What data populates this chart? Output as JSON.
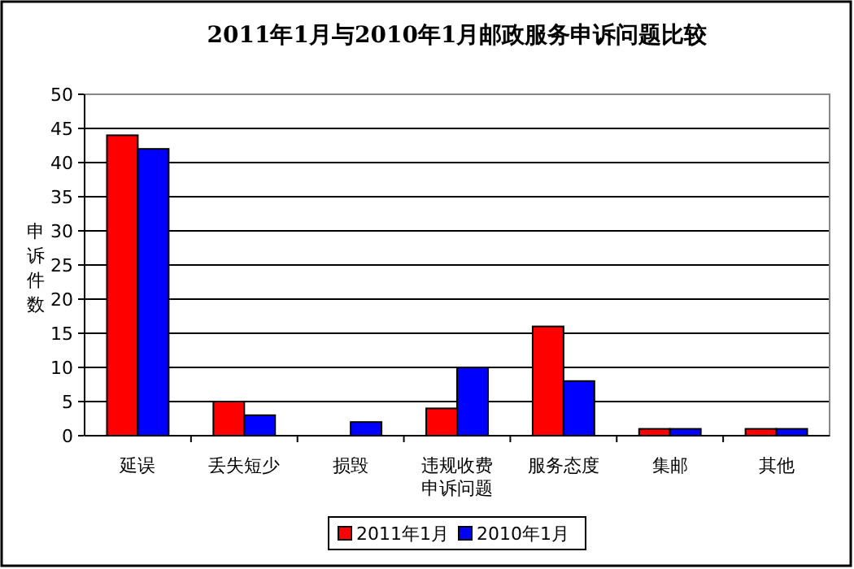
{
  "chart_data": {
    "type": "bar",
    "title": "2011年1月与2010年1月邮政服务申诉问题比较",
    "xlabel": "申诉问题",
    "ylabel": "申诉件数",
    "categories": [
      "延误",
      "丢失短少",
      "损毁",
      "违规收费",
      "服务态度",
      "集邮",
      "其他"
    ],
    "series": [
      {
        "name": "2011年1月",
        "color": "#ff0000",
        "values": [
          44,
          5,
          0,
          4,
          16,
          1,
          1
        ]
      },
      {
        "name": "2010年1月",
        "color": "#0000ff",
        "values": [
          42,
          3,
          2,
          10,
          8,
          1,
          1
        ]
      }
    ],
    "ylim": [
      0,
      50
    ],
    "yticks": [
      0,
      5,
      10,
      15,
      20,
      25,
      30,
      35,
      40,
      45,
      50
    ],
    "grid": "y",
    "legend": "bottom"
  }
}
